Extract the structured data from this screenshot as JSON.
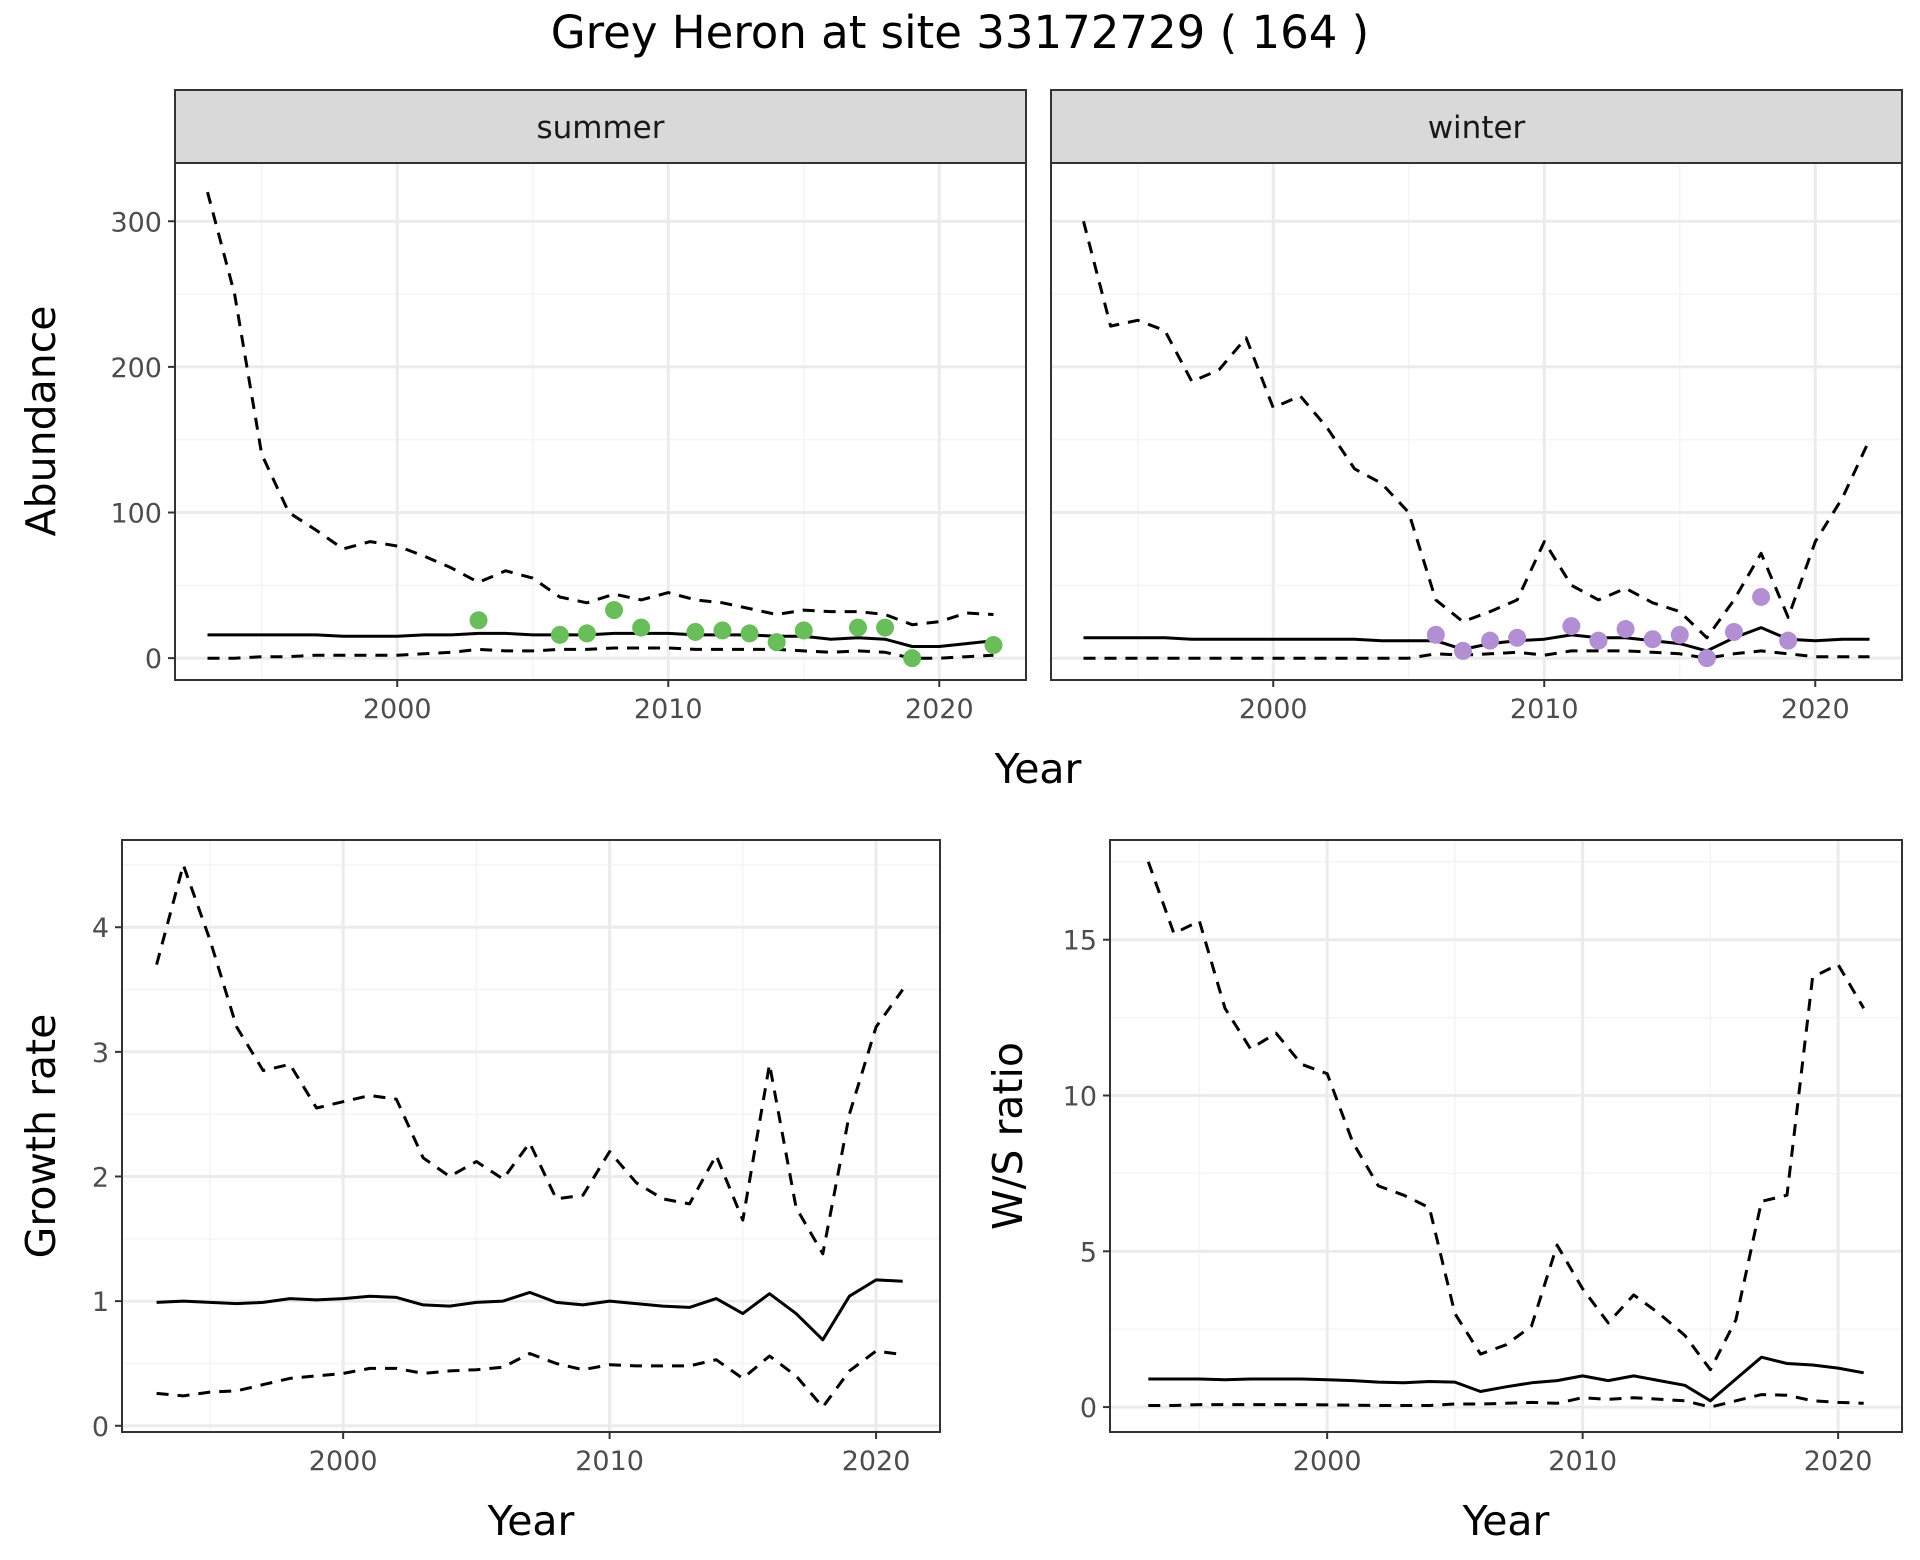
{
  "title": "Grey Heron at site 33172729 ( 164 )",
  "colors": {
    "summer_points": "#6abd5b",
    "winter_points": "#b28ed2",
    "grid_major": "#ebebeb",
    "grid_minor": "#f4f4f4",
    "strip_bg": "#d9d9d9",
    "panel_border": "#333333",
    "line": "#000000"
  },
  "chart_data": [
    {
      "id": "abundance",
      "type": "line",
      "facets": [
        "summer",
        "winter"
      ],
      "xlabel": "Year",
      "ylabel": "Abundance",
      "xlim": [
        1991.8,
        2023.2
      ],
      "ylim": [
        -15,
        340
      ],
      "xticks": [
        2000,
        2010,
        2020
      ],
      "yticks": [
        0,
        100,
        200,
        300
      ],
      "panels": [
        {
          "name": "summer",
          "x": [
            1993,
            1994,
            1995,
            1996,
            1997,
            1998,
            1999,
            2000,
            2001,
            2002,
            2003,
            2004,
            2005,
            2006,
            2007,
            2008,
            2009,
            2010,
            2011,
            2012,
            2013,
            2014,
            2015,
            2016,
            2017,
            2018,
            2019,
            2020,
            2021,
            2022
          ],
          "series": [
            {
              "name": "upper",
              "style": "dashed",
              "values": [
                320,
                250,
                140,
                100,
                88,
                75,
                80,
                77,
                70,
                62,
                52,
                60,
                55,
                42,
                38,
                44,
                40,
                45,
                40,
                38,
                34,
                30,
                33,
                32,
                32,
                30,
                23,
                25,
                31,
                30
              ]
            },
            {
              "name": "estimate",
              "style": "solid",
              "values": [
                16,
                16,
                16,
                16,
                16,
                15,
                15,
                15,
                16,
                16,
                17,
                17,
                16,
                16,
                16,
                17,
                17,
                17,
                16,
                16,
                16,
                15,
                15,
                13,
                14,
                13,
                8,
                8,
                10,
                12
              ]
            },
            {
              "name": "lower",
              "style": "dashed",
              "values": [
                0,
                0,
                1,
                1,
                2,
                2,
                2,
                2,
                3,
                4,
                6,
                5,
                5,
                6,
                6,
                7,
                7,
                7,
                6,
                6,
                6,
                6,
                5,
                4,
                5,
                4,
                0,
                0,
                1,
                2
              ]
            }
          ],
          "points": {
            "x": [
              2003,
              2006,
              2007,
              2008,
              2009,
              2011,
              2012,
              2013,
              2014,
              2015,
              2017,
              2018,
              2019,
              2022
            ],
            "y": [
              26,
              16,
              17,
              33,
              21,
              18,
              19,
              17,
              11,
              19,
              21,
              21,
              0,
              9
            ]
          }
        },
        {
          "name": "winter",
          "x": [
            1993,
            1994,
            1995,
            1996,
            1997,
            1998,
            1999,
            2000,
            2001,
            2002,
            2003,
            2004,
            2005,
            2006,
            2007,
            2008,
            2009,
            2010,
            2011,
            2012,
            2013,
            2014,
            2015,
            2016,
            2017,
            2018,
            2019,
            2020,
            2021,
            2022
          ],
          "series": [
            {
              "name": "upper",
              "style": "dashed",
              "values": [
                300,
                228,
                232,
                225,
                190,
                198,
                220,
                172,
                180,
                158,
                130,
                120,
                100,
                40,
                25,
                32,
                40,
                80,
                50,
                40,
                48,
                38,
                32,
                14,
                40,
                72,
                28,
                80,
                110,
                150
              ]
            },
            {
              "name": "estimate",
              "style": "solid",
              "values": [
                14,
                14,
                14,
                14,
                13,
                13,
                13,
                13,
                13,
                13,
                13,
                12,
                12,
                12,
                6,
                10,
                12,
                13,
                16,
                14,
                14,
                12,
                10,
                5,
                14,
                21,
                13,
                12,
                13,
                13
              ]
            },
            {
              "name": "lower",
              "style": "dashed",
              "values": [
                0,
                0,
                0,
                0,
                0,
                0,
                0,
                0,
                0,
                0,
                0,
                0,
                0,
                3,
                2,
                3,
                4,
                2,
                5,
                5,
                5,
                4,
                3,
                0,
                3,
                5,
                3,
                1,
                1,
                1
              ]
            }
          ],
          "points": {
            "x": [
              2006,
              2007,
              2008,
              2009,
              2011,
              2012,
              2013,
              2014,
              2015,
              2016,
              2017,
              2018,
              2019
            ],
            "y": [
              16,
              5,
              12,
              14,
              22,
              12,
              20,
              13,
              16,
              0,
              18,
              42,
              12
            ]
          }
        }
      ]
    },
    {
      "id": "growth",
      "type": "line",
      "xlabel": "Year",
      "ylabel": "Growth rate",
      "xlim": [
        1991.7,
        2022.4
      ],
      "ylim": [
        -0.05,
        4.7
      ],
      "xticks": [
        2000,
        2010,
        2020
      ],
      "yticks": [
        0,
        1,
        2,
        3,
        4
      ],
      "x": [
        1993,
        1994,
        1995,
        1996,
        1997,
        1998,
        1999,
        2000,
        2001,
        2002,
        2003,
        2004,
        2005,
        2006,
        2007,
        2008,
        2009,
        2010,
        2011,
        2012,
        2013,
        2014,
        2015,
        2016,
        2017,
        2018,
        2019,
        2020,
        2021
      ],
      "series": [
        {
          "name": "upper",
          "style": "dashed",
          "values": [
            3.7,
            4.5,
            3.9,
            3.2,
            2.85,
            2.9,
            2.55,
            2.6,
            2.65,
            2.62,
            2.15,
            2.0,
            2.12,
            1.98,
            2.27,
            1.82,
            1.85,
            2.2,
            1.95,
            1.82,
            1.78,
            2.17,
            1.65,
            2.9,
            1.75,
            1.38,
            2.5,
            3.2,
            3.5
          ]
        },
        {
          "name": "estimate",
          "style": "solid",
          "values": [
            0.99,
            1.0,
            0.99,
            0.98,
            0.99,
            1.02,
            1.01,
            1.02,
            1.04,
            1.03,
            0.97,
            0.96,
            0.99,
            1.0,
            1.07,
            0.99,
            0.97,
            1.0,
            0.98,
            0.96,
            0.95,
            1.02,
            0.9,
            1.06,
            0.9,
            0.69,
            1.04,
            1.17,
            1.16
          ]
        },
        {
          "name": "lower",
          "style": "dashed",
          "values": [
            0.26,
            0.24,
            0.27,
            0.28,
            0.33,
            0.38,
            0.4,
            0.42,
            0.46,
            0.46,
            0.42,
            0.44,
            0.45,
            0.47,
            0.58,
            0.5,
            0.45,
            0.49,
            0.48,
            0.48,
            0.48,
            0.53,
            0.38,
            0.56,
            0.4,
            0.15,
            0.44,
            0.6,
            0.57
          ]
        }
      ]
    },
    {
      "id": "ws_ratio",
      "type": "line",
      "xlabel": "Year",
      "ylabel": "W/S ratio",
      "xlim": [
        1991.5,
        2022.5
      ],
      "ylim": [
        -0.8,
        18.2
      ],
      "xticks": [
        2000,
        2010,
        2020
      ],
      "yticks": [
        0,
        5,
        10,
        15
      ],
      "x": [
        1993,
        1994,
        1995,
        1996,
        1997,
        1998,
        1999,
        2000,
        2001,
        2002,
        2003,
        2004,
        2005,
        2006,
        2007,
        2008,
        2009,
        2010,
        2011,
        2012,
        2013,
        2014,
        2015,
        2016,
        2017,
        2018,
        2019,
        2020,
        2021
      ],
      "series": [
        {
          "name": "upper",
          "style": "dashed",
          "values": [
            17.5,
            15.2,
            15.6,
            12.8,
            11.5,
            12.0,
            11.0,
            10.7,
            8.5,
            7.1,
            6.8,
            6.4,
            3.0,
            1.7,
            2.0,
            2.6,
            5.2,
            3.8,
            2.7,
            3.6,
            3.0,
            2.3,
            1.2,
            2.8,
            6.6,
            6.8,
            13.8,
            14.2,
            12.8
          ]
        },
        {
          "name": "estimate",
          "style": "solid",
          "values": [
            0.9,
            0.9,
            0.9,
            0.88,
            0.9,
            0.9,
            0.9,
            0.88,
            0.85,
            0.8,
            0.78,
            0.82,
            0.8,
            0.5,
            0.65,
            0.78,
            0.85,
            1.0,
            0.85,
            1.0,
            0.85,
            0.7,
            0.2,
            0.9,
            1.6,
            1.4,
            1.35,
            1.25,
            1.1
          ]
        },
        {
          "name": "lower",
          "style": "dashed",
          "values": [
            0.05,
            0.05,
            0.08,
            0.08,
            0.08,
            0.08,
            0.08,
            0.07,
            0.06,
            0.05,
            0.05,
            0.05,
            0.1,
            0.1,
            0.12,
            0.15,
            0.12,
            0.3,
            0.25,
            0.3,
            0.25,
            0.2,
            0.0,
            0.2,
            0.4,
            0.38,
            0.2,
            0.15,
            0.12
          ]
        }
      ]
    }
  ]
}
